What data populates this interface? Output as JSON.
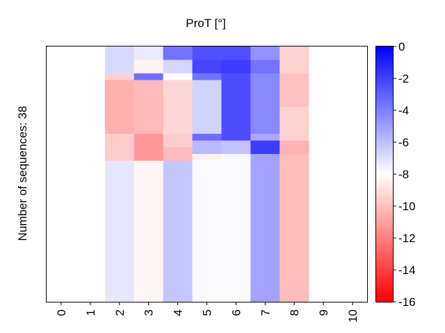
{
  "chart_data": {
    "type": "heatmap",
    "title": "ProT [°]",
    "ylabel": "Number of sequences: 38",
    "xlabel": "",
    "x_ticks": [
      "0",
      "1",
      "2",
      "3",
      "4",
      "5",
      "6",
      "7",
      "8",
      "9",
      "10"
    ],
    "colorbar": {
      "range": [
        -16,
        0
      ],
      "ticks": [
        "0",
        "-2",
        "-4",
        "-6",
        "-8",
        "-10",
        "-12",
        "-14",
        "-16"
      ],
      "colors": {
        "high": "#0000ff",
        "mid": "#ffffff",
        "low": "#ff0000"
      }
    },
    "rows_top_to_bottom": 38,
    "columns": [
      {
        "x": 0,
        "segments": []
      },
      {
        "x": 1,
        "segments": []
      },
      {
        "x": 2,
        "segments": [
          {
            "rows": [
              0,
              2
            ],
            "value": -6.8
          },
          {
            "rows": [
              2,
              4
            ],
            "value": -6.8
          },
          {
            "rows": [
              4,
              5
            ],
            "value": -9.4
          },
          {
            "rows": [
              5,
              13
            ],
            "value": -10.5
          },
          {
            "rows": [
              13,
              17
            ],
            "value": -9.6
          },
          {
            "rows": [
              17,
              38
            ],
            "value": -7.2
          }
        ]
      },
      {
        "x": 3,
        "segments": [
          {
            "rows": [
              0,
              2
            ],
            "value": -7.3
          },
          {
            "rows": [
              2,
              4
            ],
            "value": -8.4
          },
          {
            "rows": [
              4,
              5
            ],
            "value": -3.5
          },
          {
            "rows": [
              5,
              13
            ],
            "value": -10.2
          },
          {
            "rows": [
              13,
              17
            ],
            "value": -11.2
          },
          {
            "rows": [
              17,
              38
            ],
            "value": -8.3
          }
        ]
      },
      {
        "x": 4,
        "segments": [
          {
            "rows": [
              0,
              2
            ],
            "value": -3.6
          },
          {
            "rows": [
              2,
              4
            ],
            "value": -6.7
          },
          {
            "rows": [
              4,
              5
            ],
            "value": -7.9
          },
          {
            "rows": [
              5,
              13
            ],
            "value": -9.3
          },
          {
            "rows": [
              13,
              15
            ],
            "value": -9.6
          },
          {
            "rows": [
              15,
              17
            ],
            "value": -10.1
          },
          {
            "rows": [
              17,
              38
            ],
            "value": -6.2
          }
        ]
      },
      {
        "x": 5,
        "segments": [
          {
            "rows": [
              0,
              2
            ],
            "value": -2.5
          },
          {
            "rows": [
              2,
              4
            ],
            "value": -2.2
          },
          {
            "rows": [
              4,
              5
            ],
            "value": -3.6
          },
          {
            "rows": [
              5,
              13
            ],
            "value": -6.6
          },
          {
            "rows": [
              13,
              14
            ],
            "value": -3.4
          },
          {
            "rows": [
              14,
              16
            ],
            "value": -5.8
          },
          {
            "rows": [
              16,
              17
            ],
            "value": -8.4
          },
          {
            "rows": [
              17,
              38
            ],
            "value": -7.8
          }
        ]
      },
      {
        "x": 6,
        "segments": [
          {
            "rows": [
              0,
              2
            ],
            "value": -2.5
          },
          {
            "rows": [
              2,
              4
            ],
            "value": -1.9
          },
          {
            "rows": [
              4,
              14
            ],
            "value": -2.4
          },
          {
            "rows": [
              14,
              16
            ],
            "value": -6.1
          },
          {
            "rows": [
              16,
              38
            ],
            "value": -7.8
          }
        ]
      },
      {
        "x": 7,
        "segments": [
          {
            "rows": [
              0,
              2
            ],
            "value": -4.6
          },
          {
            "rows": [
              2,
              4
            ],
            "value": -3.6
          },
          {
            "rows": [
              4,
              13
            ],
            "value": -4.3
          },
          {
            "rows": [
              13,
              14
            ],
            "value": -5.3
          },
          {
            "rows": [
              14,
              16
            ],
            "value": -1.9
          },
          {
            "rows": [
              16,
              38
            ],
            "value": -5.1
          }
        ]
      },
      {
        "x": 8,
        "segments": [
          {
            "rows": [
              0,
              4
            ],
            "value": -9.4
          },
          {
            "rows": [
              4,
              9
            ],
            "value": -9.9
          },
          {
            "rows": [
              9,
              14
            ],
            "value": -9.4
          },
          {
            "rows": [
              14,
              16
            ],
            "value": -10.4
          },
          {
            "rows": [
              16,
              38
            ],
            "value": -10.1
          }
        ]
      },
      {
        "x": 9,
        "segments": []
      },
      {
        "x": 10,
        "segments": []
      }
    ]
  }
}
